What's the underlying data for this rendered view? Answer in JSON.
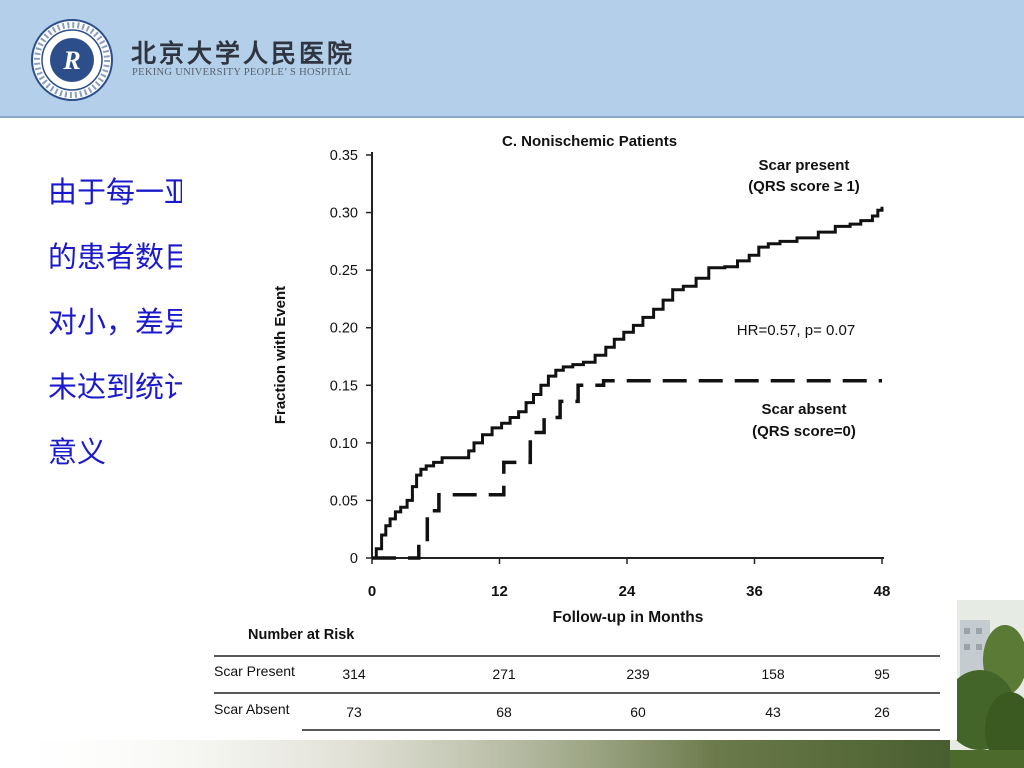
{
  "header": {
    "hospital_name_cn": "北京大学人民医院",
    "hospital_name_en": "PEKING UNIVERSITY PEOPLE’ S HOSPITAL",
    "logo_icon": "hospital-seal-logo-icon",
    "background_color": "#b3cfe9"
  },
  "side_note": {
    "text": "由于每一亚组的患者数目相对小，差异均未达到统计学意义",
    "color": "#1a1acb"
  },
  "chart_data": {
    "type": "line",
    "title": "C. Nonischemic Patients",
    "xlabel": "Follow-up in Months",
    "ylabel": "Fraction with Event",
    "xlim": [
      0,
      48
    ],
    "ylim": [
      0,
      0.35
    ],
    "x_ticks": [
      0,
      12,
      24,
      36,
      48
    ],
    "x_tick_labels": [
      "0",
      "12",
      "24",
      "36",
      "48"
    ],
    "y_ticks": [
      0,
      0.05,
      0.1,
      0.15,
      0.2,
      0.25,
      0.3,
      0.35
    ],
    "y_tick_labels": [
      "0",
      "0.05",
      "0.10",
      "0.15",
      "0.20",
      "0.25",
      "0.30",
      "0.35"
    ],
    "grid": false,
    "annotations": {
      "hr": "HR=0.57, p= 0.07",
      "scar_present_line1": "Scar present",
      "scar_present_line2": "(QRS score ≥ 1)",
      "scar_absent_line1": "Scar absent",
      "scar_absent_line2": "(QRS score=0)"
    },
    "series": [
      {
        "name": "Scar present (QRS score ≥ 1)",
        "style": "solid",
        "color": "#111111",
        "x": [
          0,
          0.4,
          0.9,
          1.3,
          1.7,
          2.2,
          2.7,
          3.3,
          3.8,
          4.2,
          4.6,
          5.1,
          5.8,
          6.6,
          7.4,
          8.4,
          9.1,
          9.6,
          10.4,
          11.3,
          12.2,
          13.0,
          13.8,
          14.5,
          15.2,
          15.9,
          16.6,
          17.3,
          18.0,
          18.9,
          19.9,
          21.0,
          22.0,
          22.8,
          23.7,
          24.6,
          25.5,
          26.5,
          27.4,
          28.3,
          29.3,
          30.5,
          31.7,
          33.2,
          34.4,
          35.5,
          36.4,
          37.3,
          38.4,
          40.0,
          42.0,
          43.6,
          45.0,
          46.0,
          47.1,
          47.6,
          48.0
        ],
        "y": [
          0,
          0.008,
          0.02,
          0.028,
          0.034,
          0.04,
          0.044,
          0.05,
          0.062,
          0.072,
          0.077,
          0.08,
          0.083,
          0.087,
          0.087,
          0.087,
          0.093,
          0.1,
          0.107,
          0.113,
          0.117,
          0.122,
          0.127,
          0.135,
          0.142,
          0.15,
          0.158,
          0.163,
          0.166,
          0.168,
          0.17,
          0.176,
          0.183,
          0.19,
          0.196,
          0.202,
          0.209,
          0.216,
          0.224,
          0.233,
          0.236,
          0.243,
          0.252,
          0.253,
          0.258,
          0.263,
          0.27,
          0.273,
          0.275,
          0.278,
          0.283,
          0.288,
          0.29,
          0.293,
          0.297,
          0.302,
          0.305
        ]
      },
      {
        "name": "Scar absent (QRS score=0)",
        "style": "dashed",
        "color": "#111111",
        "x": [
          0,
          3.8,
          4.4,
          5.2,
          6.3,
          12.4,
          14.9,
          16.2,
          17.7,
          19.4,
          21.8,
          48.0
        ],
        "y": [
          0,
          0,
          0.014,
          0.041,
          0.055,
          0.083,
          0.109,
          0.122,
          0.136,
          0.15,
          0.154,
          0.154
        ]
      }
    ],
    "number_at_risk": {
      "title": "Number at Risk",
      "columns": [
        "0",
        "12",
        "24",
        "36",
        "48"
      ],
      "rows": [
        {
          "label": "Scar Present",
          "values": [
            "314",
            "271",
            "239",
            "158",
            "95"
          ]
        },
        {
          "label": "Scar Absent",
          "values": [
            "73",
            "68",
            "60",
            "43",
            "26"
          ]
        }
      ]
    }
  }
}
